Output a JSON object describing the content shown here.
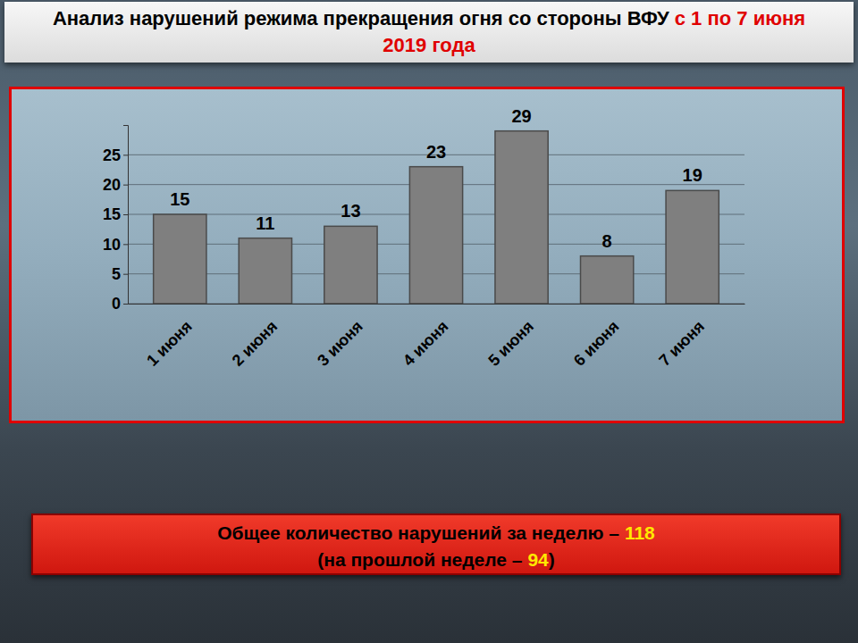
{
  "chart_data": {
    "type": "bar",
    "title": "Анализ нарушений режима прекращения огня со стороны ВФУ",
    "subtitle": "с 1 по 7 июня 2019 года",
    "categories": [
      "1 июня",
      "2 июня",
      "3 июня",
      "4 июня",
      "5 июня",
      "6 июня",
      "7 июня"
    ],
    "values": [
      15,
      11,
      13,
      23,
      29,
      8,
      19
    ],
    "color": "#7f7f7f",
    "ylim": [
      0,
      30
    ],
    "yticks": [
      0,
      5,
      10,
      15,
      20,
      25
    ],
    "grid": true,
    "data_labels": true,
    "annotations": [
      {
        "label": "Общее количество нарушений за неделю –",
        "value": 118
      },
      {
        "label": "(на прошлой неделе –",
        "value": 94,
        "close": ")"
      }
    ]
  }
}
